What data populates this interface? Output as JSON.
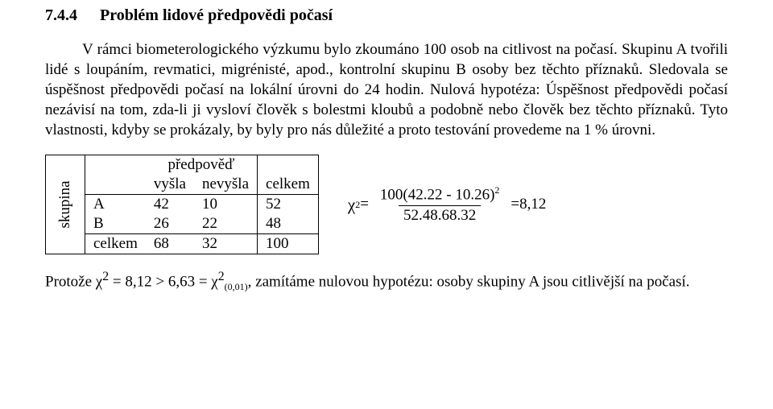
{
  "heading": {
    "number": "7.4.4",
    "title": "Problém lidové předpovědi počasí"
  },
  "paragraph": "V rámci biometerologického výzkumu bylo zkoumáno 100 osob na citlivost na počasí. Skupinu A tvořili lidé s loupáním, revmatici, migrénisté, apod., kontrolní skupinu B osoby bez těchto příznaků. Sledovala se úspěšnost předpovědi počasí na lokální úrovni do 24 hodin. Nulová hypotéza: Úspěšnost předpovědi počasí nezávisí na tom, zda-li ji vysloví člověk s bolestmi kloubů a podobně nebo člověk bez těchto příznaků. Tyto vlastnosti, kdyby se prokázaly, by byly pro nás důležité a proto testování provedeme na 1 % úrovni.",
  "table": {
    "side_label": "skupina",
    "top_label": "předpověď",
    "col_headers": [
      "vyšla",
      "nevyšla",
      "celkem"
    ],
    "row_headers": [
      "A",
      "B",
      "celkem"
    ],
    "cells": [
      [
        "42",
        "10",
        "52"
      ],
      [
        "26",
        "22",
        "48"
      ],
      [
        "68",
        "32",
        "100"
      ]
    ]
  },
  "formula": {
    "lhs_symbol": "χ",
    "lhs_sup": "2",
    "eq1": " = ",
    "numerator": "100(42.22 - 10.26)",
    "num_sup": "2",
    "denominator": "52.48.68.32",
    "eq2": " = ",
    "result": "8,12"
  },
  "conclusion": {
    "pre": "Protože χ",
    "sup1": "2",
    "mid1": " = 8,12   >   6,63 = χ",
    "sup2": "2",
    "sub2": "(0,01)",
    "post": ", zamítáme nulovou hypotézu: osoby skupiny A jsou citlivější na počasí."
  }
}
